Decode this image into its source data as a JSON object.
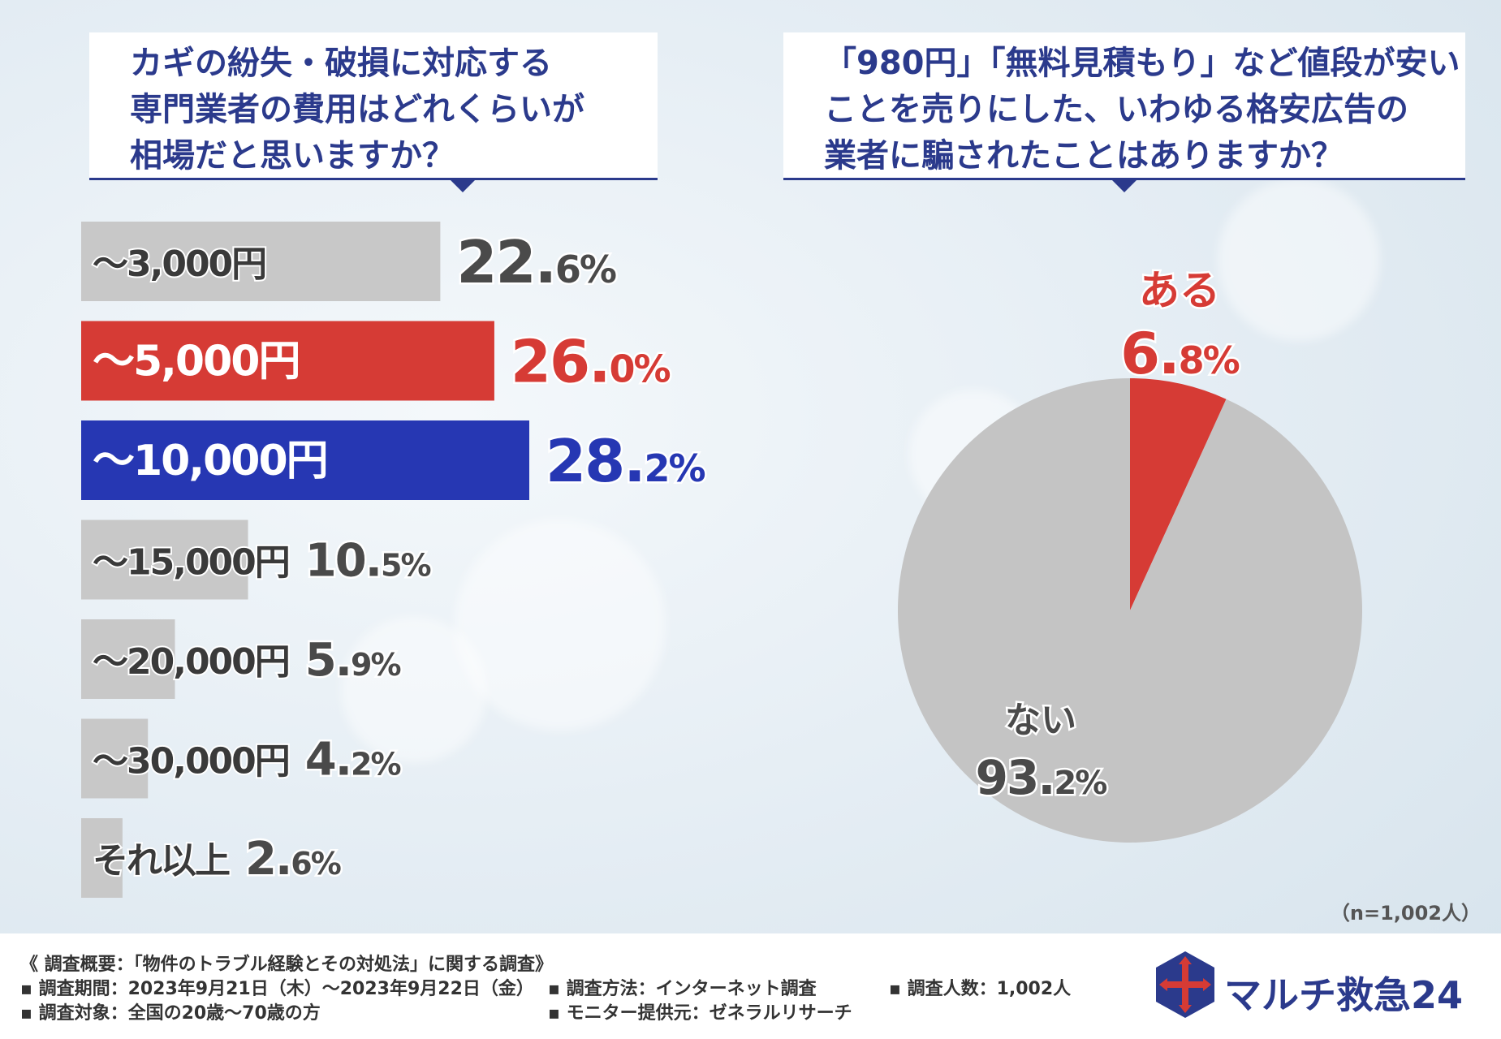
{
  "left_question": {
    "lines": [
      "カギの紛失・破損に対応する",
      "専門業者の費用はどれくらいが",
      "相場だと思いますか？"
    ]
  },
  "right_question": {
    "lines": [
      "「980円」「無料見積もり」など値段が安い",
      "ことを売りにした、いわゆる格安広告の",
      "業者に騙されたことはありますか？"
    ]
  },
  "chart_data": [
    {
      "type": "bar",
      "orientation": "horizontal",
      "categories": [
        "～3,000円",
        "～5,000円",
        "～10,000円",
        "～15,000円",
        "～20,000円",
        "～30,000円",
        "それ以上"
      ],
      "values": [
        22.6,
        26.0,
        28.2,
        10.5,
        5.9,
        4.2,
        2.6
      ],
      "value_labels": [
        {
          "main": "22.",
          "sub": "6%"
        },
        {
          "main": "26.",
          "sub": "0%"
        },
        {
          "main": "28.",
          "sub": "2%"
        },
        {
          "main": "10.",
          "sub": "5%"
        },
        {
          "main": "5.",
          "sub": "9%"
        },
        {
          "main": "4.",
          "sub": "2%"
        },
        {
          "main": "2.",
          "sub": "6%"
        }
      ],
      "bar_colors": [
        "#c8c8c8",
        "#d63b35",
        "#2637b3",
        "#c8c8c8",
        "#c8c8c8",
        "#c8c8c8",
        "#c8c8c8"
      ],
      "label_colors": [
        "#4a4a4a",
        "#d63b35",
        "#2637b3",
        "#4a4a4a",
        "#4a4a4a",
        "#4a4a4a",
        "#4a4a4a"
      ],
      "category_text_colors": [
        "#3a3a3a",
        "#ffffff",
        "#ffffff",
        "#3a3a3a",
        "#3a3a3a",
        "#3a3a3a",
        "#3a3a3a"
      ],
      "xlim": [
        0,
        28.2
      ]
    },
    {
      "type": "pie",
      "slices": [
        {
          "label": "ある",
          "value": 6.8,
          "value_main": "6.",
          "value_sub": "8%",
          "color": "#d63b35",
          "label_color": "#d63b35"
        },
        {
          "label": "ない",
          "value": 93.2,
          "value_main": "93.",
          "value_sub": "2%",
          "color": "#c4c4c4",
          "label_color": "#4a4a4a"
        }
      ]
    }
  ],
  "sample_note": "（n=1,002人）",
  "footer": {
    "title": "《 調査概要：「物件のトラブル経験とその対処法」に関する調査》",
    "period": "▪ 調査期間：2023年9月21日（木）～2023年9月22日（金）",
    "target": "▪ 調査対象：全国の20歳～70歳の方",
    "method": "▪ 調査方法：インターネット調査",
    "provider": "▪ モニター提供元：ゼネラルリサーチ",
    "count": "▪ 調査人数：1,002人"
  },
  "logo": {
    "text": "マルチ救急24",
    "color": "#2b3a8c",
    "cross_color": "#d63b35"
  }
}
